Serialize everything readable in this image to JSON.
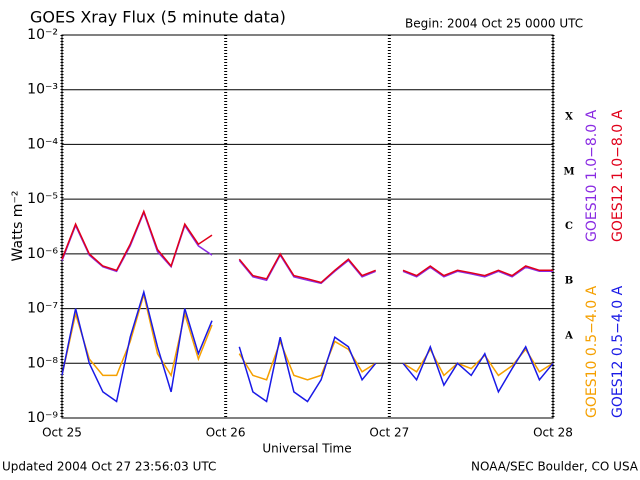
{
  "chart_data": {
    "type": "line",
    "title": "GOES Xray Flux (5 minute data)",
    "subtitle": "Begin:  2004 Oct 25 0000 UTC",
    "x_label": "Universal Time",
    "y_label": "Watts m⁻²",
    "footer_left": "Updated 2004 Oct 27 23:56:03 UTC",
    "footer_right": "NOAA/SEC Boulder, CO USA",
    "log_y": true,
    "grid": true,
    "xlim": [
      0,
      72
    ],
    "xticks": [
      {
        "value": 0,
        "label": "Oct 25"
      },
      {
        "value": 24,
        "label": "Oct 26"
      },
      {
        "value": 48,
        "label": "Oct 27"
      },
      {
        "value": 72,
        "label": "Oct 28"
      }
    ],
    "ylim": [
      1e-09,
      0.01
    ],
    "yticks": [
      {
        "value": 1e-09,
        "label": "10⁻⁹"
      },
      {
        "value": 1e-08,
        "label": "10⁻⁸"
      },
      {
        "value": 1e-07,
        "label": "10⁻⁷"
      },
      {
        "value": 1e-06,
        "label": "10⁻⁶"
      },
      {
        "value": 1e-05,
        "label": "10⁻⁵"
      },
      {
        "value": 0.0001,
        "label": "10⁻⁴"
      },
      {
        "value": 0.001,
        "label": "10⁻³"
      },
      {
        "value": 0.01,
        "label": "10⁻²"
      }
    ],
    "flare_classes": [
      {
        "label": "A",
        "value": 1e-08
      },
      {
        "label": "B",
        "value": 1e-07
      },
      {
        "label": "C",
        "value": 1e-06
      },
      {
        "label": "M",
        "value": 1e-05
      },
      {
        "label": "X",
        "value": 0.0001
      }
    ],
    "x": [
      0,
      2,
      4,
      6,
      8,
      10,
      12,
      14,
      16,
      18,
      20,
      22,
      24,
      26,
      28,
      30,
      32,
      34,
      36,
      38,
      40,
      42,
      44,
      46,
      48,
      50,
      52,
      54,
      56,
      58,
      60,
      62,
      64,
      66,
      68,
      70,
      72
    ],
    "series": [
      {
        "name": "GOES10 1.0−8.0 A",
        "color": "#8a2be2",
        "values": [
          7.5e-07,
          3.3e-06,
          9.5e-07,
          5.8e-07,
          4.8e-07,
          1.4e-06,
          5.7e-06,
          1.1e-06,
          5.8e-07,
          3.3e-06,
          1.4e-06,
          9.5e-07,
          null,
          7.6e-07,
          3.8e-07,
          3.3e-07,
          9.5e-07,
          3.8e-07,
          3.3e-07,
          2.9e-07,
          4.8e-07,
          7.6e-07,
          3.8e-07,
          4.8e-07,
          null,
          4.8e-07,
          3.8e-07,
          5.7e-07,
          3.8e-07,
          4.8e-07,
          4.3e-07,
          3.8e-07,
          4.8e-07,
          3.8e-07,
          5.7e-07,
          4.8e-07,
          4.8e-07
        ]
      },
      {
        "name": "GOES12 1.0−8.0 A",
        "color": "#e0001a",
        "values": [
          8e-07,
          3.5e-06,
          1e-06,
          6e-07,
          5e-07,
          1.5e-06,
          6e-06,
          1.2e-06,
          6e-07,
          3.5e-06,
          1.5e-06,
          2.2e-06,
          null,
          8e-07,
          4e-07,
          3.5e-07,
          1e-06,
          4e-07,
          3.5e-07,
          3e-07,
          5e-07,
          8e-07,
          4e-07,
          5e-07,
          null,
          5e-07,
          4e-07,
          6e-07,
          4e-07,
          5e-07,
          4.5e-07,
          4e-07,
          5e-07,
          4e-07,
          6e-07,
          5e-07,
          5e-07
        ]
      },
      {
        "name": "GOES10 0.5−4.0 A",
        "color": "#f5a000",
        "values": [
          6e-09,
          8e-08,
          1.2e-08,
          6e-09,
          6e-09,
          2.5e-08,
          1.8e-07,
          1.5e-08,
          6e-09,
          8e-08,
          1.2e-08,
          5e-08,
          null,
          1.5e-08,
          6e-09,
          5e-09,
          2.5e-08,
          6e-09,
          5e-09,
          6e-09,
          2.5e-08,
          1.8e-08,
          7e-09,
          1e-08,
          null,
          1e-08,
          7e-09,
          1.8e-08,
          6e-09,
          1e-08,
          8e-09,
          1.4e-08,
          6e-09,
          9e-09,
          1.8e-08,
          7e-09,
          1e-08
        ]
      },
      {
        "name": "GOES12 0.5−4.0 A",
        "color": "#1a1ae6",
        "values": [
          6e-09,
          1e-07,
          1e-08,
          3e-09,
          2e-09,
          3e-08,
          2e-07,
          2e-08,
          3e-09,
          1e-07,
          1.5e-08,
          6e-08,
          null,
          2e-08,
          3e-09,
          2e-09,
          3e-08,
          3e-09,
          2e-09,
          5e-09,
          3e-08,
          2e-08,
          5e-09,
          1e-08,
          null,
          1e-08,
          5e-09,
          2e-08,
          4e-09,
          1e-08,
          6e-09,
          1.5e-08,
          3e-09,
          8e-09,
          2e-08,
          5e-09,
          1e-08
        ]
      }
    ]
  }
}
